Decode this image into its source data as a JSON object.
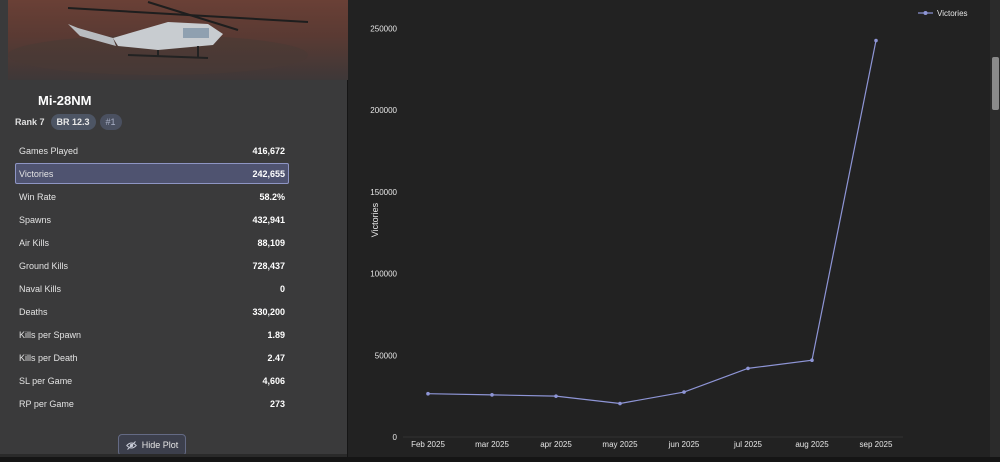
{
  "vehicle": {
    "name": "Mi-28NM",
    "rank": "Rank 7",
    "br": "BR 12.3",
    "position": "#1"
  },
  "stats": [
    {
      "label": "Games Played",
      "value": "416,672"
    },
    {
      "label": "Victories",
      "value": "242,655",
      "selected": true
    },
    {
      "label": "Win Rate",
      "value": "58.2%"
    },
    {
      "label": "Spawns",
      "value": "432,941"
    },
    {
      "label": "Air Kills",
      "value": "88,109"
    },
    {
      "label": "Ground Kills",
      "value": "728,437"
    },
    {
      "label": "Naval Kills",
      "value": "0"
    },
    {
      "label": "Deaths",
      "value": "330,200"
    },
    {
      "label": "Kills per Spawn",
      "value": "1.89"
    },
    {
      "label": "Kills per Death",
      "value": "2.47"
    },
    {
      "label": "SL per Game",
      "value": "4,606"
    },
    {
      "label": "RP per Game",
      "value": "273"
    }
  ],
  "hide_plot": {
    "label": "Hide Plot",
    "icon": "eye-slash-icon"
  },
  "colors": {
    "accent": "#8e95d6",
    "selected_row": "#4f5370"
  },
  "chart_data": {
    "type": "line",
    "categories": [
      "Feb 2025",
      "mar 2025",
      "apr 2025",
      "may 2025",
      "jun 2025",
      "jul 2025",
      "aug 2025",
      "sep 2025"
    ],
    "series": [
      {
        "name": "Victories",
        "values": [
          26500,
          25800,
          25000,
          20500,
          27500,
          42000,
          47000,
          242655
        ]
      }
    ],
    "ylabel": "Victories",
    "xlabel": "",
    "ylim": [
      0,
      250000
    ],
    "yticks": [
      0,
      50000,
      100000,
      150000,
      200000,
      250000
    ],
    "legend": "top-right",
    "grid": false
  }
}
